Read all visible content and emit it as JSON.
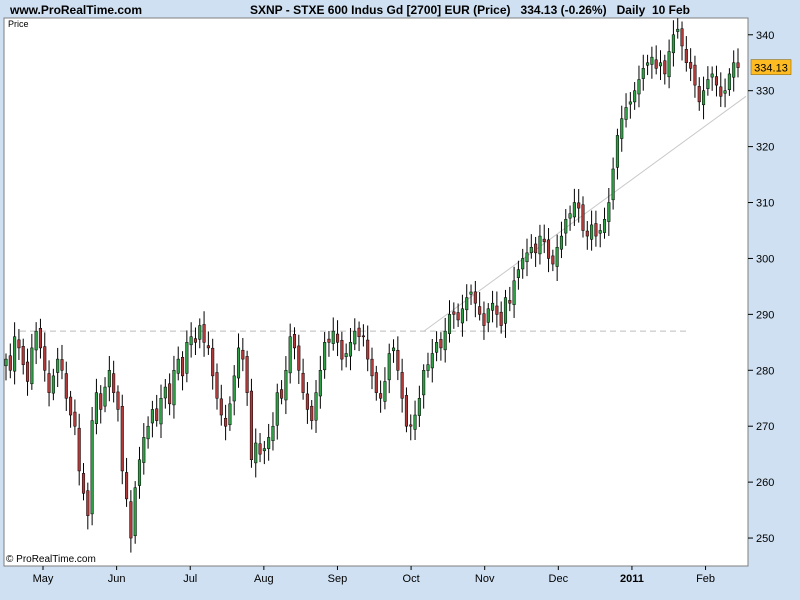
{
  "header": {
    "site": "www.ProRealTime.com",
    "title": "SXNP - STXE 600 Indus Gd [2700] EUR (Price)",
    "last_change": "334.13 (-0.26%)",
    "period": "Daily  10 Feb"
  },
  "panel_label": "Price",
  "copyright": "© ProRealTime.com",
  "colors": {
    "frame": "#cfe0f2",
    "plot_background": "#ffffff",
    "up_candle": "#2f9e44",
    "down_candle": "#b03a3a",
    "wick": "#000000",
    "price_tag": "#ffbb22",
    "trendline": "#c9c9c9",
    "support_line": "#bdbdbd"
  },
  "chart_data": {
    "type": "candlestick",
    "title": "SXNP - STXE 600 Indus Gd [2700] EUR (Price)",
    "y_axis": {
      "side": "right",
      "ticks": [
        250,
        260,
        270,
        280,
        290,
        300,
        310,
        320,
        330,
        340
      ],
      "range": [
        245,
        343
      ]
    },
    "x_axis": {
      "ticks": [
        {
          "label": "May",
          "bold": false
        },
        {
          "label": "Jun",
          "bold": false
        },
        {
          "label": "Jul",
          "bold": false
        },
        {
          "label": "Aug",
          "bold": false
        },
        {
          "label": "Sep",
          "bold": false
        },
        {
          "label": "Oct",
          "bold": false
        },
        {
          "label": "Nov",
          "bold": false
        },
        {
          "label": "Dec",
          "bold": false
        },
        {
          "label": "2011",
          "bold": true
        },
        {
          "label": "Feb",
          "bold": false
        }
      ]
    },
    "last_price": "334.13",
    "support_level": 287,
    "trendline": {
      "from": {
        "date": "2010-10-01",
        "value": 287
      },
      "to": {
        "date": "2011-02-11",
        "value": 329
      }
    },
    "closes": [
      282,
      280,
      286,
      284,
      281,
      278,
      284,
      287,
      284,
      280,
      276,
      279,
      282,
      280,
      275,
      272,
      270,
      262,
      258,
      254,
      271,
      276,
      273,
      277,
      280,
      276,
      273,
      262,
      257,
      250,
      259,
      264,
      268,
      270,
      273,
      271,
      275,
      277,
      274,
      280,
      282,
      279,
      285,
      286,
      285,
      288,
      285,
      284,
      279,
      275,
      272,
      270,
      274,
      279,
      284,
      282,
      276,
      264,
      267,
      265,
      266,
      268,
      270,
      276,
      275,
      280,
      286,
      284,
      280,
      276,
      273,
      271,
      276,
      280,
      285,
      285,
      287,
      285,
      282,
      283,
      285,
      287,
      286,
      286,
      282,
      279,
      276,
      275,
      278,
      283,
      284,
      280,
      275,
      270,
      270,
      272,
      275,
      280,
      281,
      283,
      285,
      284,
      287,
      290,
      290,
      289,
      291,
      293,
      294,
      292,
      290,
      288,
      291,
      292,
      290,
      288,
      293,
      292,
      296,
      298,
      300,
      301,
      302,
      301,
      304,
      303,
      300,
      299,
      302,
      304,
      307,
      308,
      310,
      309,
      305,
      304,
      306,
      304,
      305,
      307,
      310,
      316,
      322,
      325,
      327,
      328,
      330,
      332,
      334,
      335,
      336,
      334,
      335,
      333,
      337,
      340,
      341,
      338,
      335,
      334,
      331,
      328,
      330,
      332,
      333,
      331,
      329,
      330,
      333,
      335,
      334.13
    ]
  }
}
